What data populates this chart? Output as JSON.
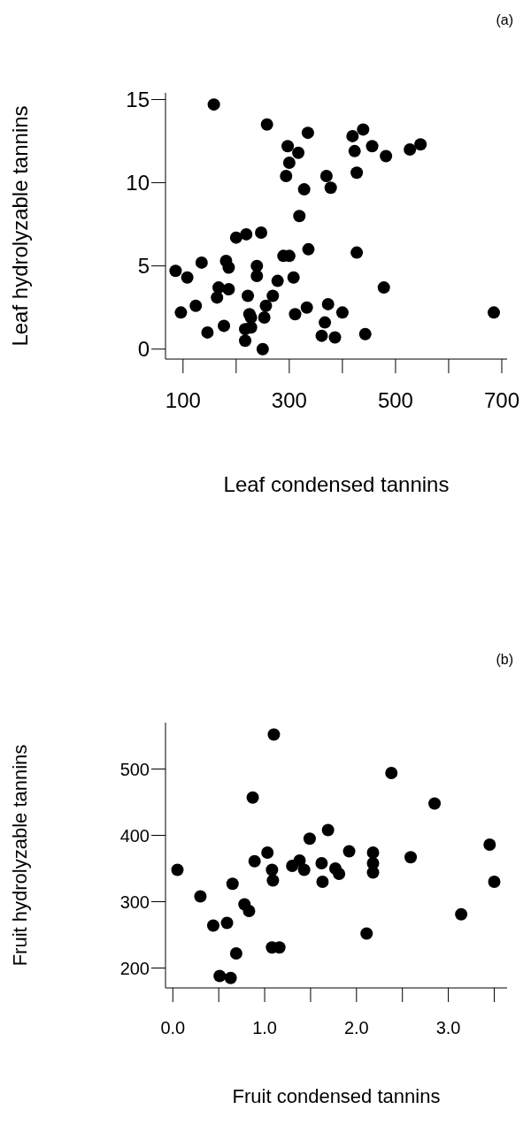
{
  "chart_data": [
    {
      "type": "scatter",
      "xlabel": "Leaf condensed tannins",
      "ylabel": "Leaf hydrolyzable tannins",
      "annotations": [
        "(a)"
      ],
      "marker": "circle",
      "color": "#000000",
      "xlim": [
        67,
        710
      ],
      "ylim": [
        -0.6,
        15.4
      ],
      "xticks": [
        100,
        {
          "value": 200,
          "label": null
        },
        300,
        {
          "value": 400,
          "label": null
        },
        500,
        {
          "value": 600,
          "label": null
        },
        700
      ],
      "yticks": [
        0,
        5,
        10,
        15
      ],
      "x": [
        158,
        258,
        335,
        297,
        317,
        300,
        294,
        419,
        439,
        456,
        423,
        482,
        527,
        547,
        427,
        328,
        370,
        378,
        319,
        336,
        200,
        219,
        247,
        427,
        86,
        108,
        135,
        181,
        186,
        239,
        239,
        289,
        300,
        278,
        308,
        167,
        186,
        164,
        222,
        269,
        96,
        124,
        225,
        256,
        253,
        311,
        333,
        373,
        400,
        478,
        685,
        146,
        177,
        217,
        228,
        217,
        250,
        367,
        361,
        386,
        443,
        228
      ],
      "values": [
        14.7,
        13.5,
        13.0,
        12.2,
        11.8,
        11.2,
        10.4,
        12.8,
        13.2,
        12.2,
        11.9,
        11.6,
        12.0,
        12.3,
        10.6,
        9.6,
        10.4,
        9.7,
        8.0,
        6.0,
        6.7,
        6.9,
        7.0,
        5.8,
        4.7,
        4.3,
        5.2,
        5.3,
        4.9,
        5.0,
        4.4,
        5.6,
        5.6,
        4.1,
        4.3,
        3.7,
        3.6,
        3.1,
        3.2,
        3.2,
        2.2,
        2.6,
        2.1,
        2.6,
        1.9,
        2.1,
        2.5,
        2.7,
        2.2,
        3.7,
        2.2,
        1.0,
        1.4,
        1.2,
        1.3,
        0.5,
        0.0,
        1.6,
        0.8,
        0.7,
        0.9,
        1.9
      ]
    },
    {
      "type": "scatter",
      "xlabel": "Fruit condensed tannins",
      "ylabel": "Fruit hydrolyzable tannins",
      "annotations": [
        "(b)"
      ],
      "marker": "circle",
      "color": "#000000",
      "xlim": [
        -0.08,
        3.64
      ],
      "ylim": [
        170,
        570
      ],
      "xticks": [
        {
          "value": 0,
          "label": "0.0"
        },
        {
          "value": 0.5,
          "label": null
        },
        {
          "value": 1,
          "label": "1.0"
        },
        {
          "value": 1.5,
          "label": null
        },
        {
          "value": 2,
          "label": "2.0"
        },
        {
          "value": 2.5,
          "label": null
        },
        {
          "value": 3,
          "label": "3.0"
        },
        {
          "value": 3.5,
          "label": null
        }
      ],
      "yticks": [
        200,
        300,
        400,
        500
      ],
      "x": [
        0.05,
        0.3,
        0.44,
        0.59,
        0.51,
        0.63,
        0.69,
        0.65,
        0.78,
        0.83,
        0.87,
        0.89,
        1.03,
        1.08,
        1.09,
        1.1,
        1.08,
        1.16,
        1.3,
        1.38,
        1.43,
        1.49,
        1.62,
        1.63,
        1.69,
        1.77,
        1.81,
        1.92,
        2.18,
        2.18,
        2.18,
        2.11,
        2.38,
        2.59,
        2.85,
        3.14,
        3.45,
        3.5
      ],
      "values": [
        348,
        308,
        264,
        268,
        188,
        185,
        222,
        327,
        296,
        286,
        457,
        361,
        374,
        348,
        332,
        552,
        231,
        231,
        354,
        362,
        348,
        395,
        358,
        330,
        408,
        350,
        342,
        376,
        374,
        358,
        344,
        252,
        494,
        367,
        448,
        281,
        386,
        330
      ]
    }
  ]
}
